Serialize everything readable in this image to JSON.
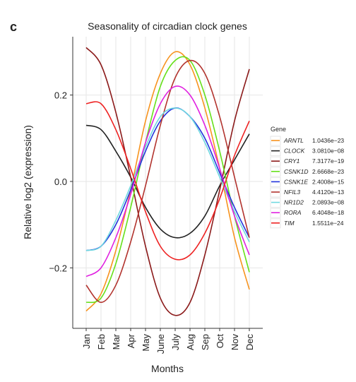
{
  "chart_data": {
    "type": "line",
    "panel_label": "c",
    "title": "Seasonality of circadian clock genes",
    "x_label": "Months",
    "y_label": "Relative log2 (expression)",
    "categories": [
      "Jan",
      "Feb",
      "Mar",
      "Apr",
      "May",
      "June",
      "July",
      "Aug",
      "Sep",
      "Oct",
      "Nov",
      "Dec"
    ],
    "ylim": [
      -0.34,
      0.335
    ],
    "yticks": [
      {
        "value": -0.2,
        "label": "−0.2"
      },
      {
        "value": 0,
        "label": "0.0"
      },
      0.2
    ],
    "grid": true,
    "legend": "right",
    "legend_title": "Gene",
    "series": [
      {
        "name": "ARNTL",
        "p_value": "1.0436e−23",
        "color": "#f7931e",
        "values": [
          -0.3,
          -0.26,
          -0.16,
          -0.02,
          0.14,
          0.25,
          0.3,
          0.27,
          0.17,
          0.03,
          -0.13,
          -0.25
        ]
      },
      {
        "name": "CLOCK",
        "p_value": "3.0810e−08",
        "color": "#222222",
        "values": [
          0.13,
          0.12,
          0.07,
          0.01,
          -0.06,
          -0.11,
          -0.13,
          -0.12,
          -0.08,
          -0.01,
          0.05,
          0.11
        ]
      },
      {
        "name": "CRY1",
        "p_value": "7.3177e−19",
        "color": "#8b1a1a",
        "values": [
          0.31,
          0.27,
          0.16,
          0.01,
          -0.15,
          -0.27,
          -0.31,
          -0.28,
          -0.17,
          -0.02,
          0.14,
          0.26
        ]
      },
      {
        "name": "CSNK1D",
        "p_value": "2.6668e−23",
        "color": "#66e01a",
        "values": [
          -0.28,
          -0.27,
          -0.19,
          -0.06,
          0.09,
          0.22,
          0.28,
          0.28,
          0.2,
          0.07,
          -0.08,
          -0.21
        ]
      },
      {
        "name": "CSNK1E",
        "p_value": "2.4008e−15",
        "color": "#2233dd",
        "values": [
          -0.16,
          -0.15,
          -0.1,
          -0.02,
          0.07,
          0.14,
          0.17,
          0.15,
          0.1,
          0.02,
          -0.06,
          -0.13
        ]
      },
      {
        "name": "NFIL3",
        "p_value": "4.4120e−13",
        "color": "#b2332e",
        "values": [
          -0.24,
          -0.28,
          -0.24,
          -0.14,
          -0.01,
          0.13,
          0.24,
          0.28,
          0.25,
          0.15,
          0.01,
          -0.13
        ]
      },
      {
        "name": "NR1D2",
        "p_value": "2.0893e−08",
        "color": "#6fd8e0",
        "values": [
          -0.16,
          -0.15,
          -0.09,
          -0.01,
          0.08,
          0.15,
          0.17,
          0.15,
          0.09,
          0.01,
          -0.07,
          -0.14
        ]
      },
      {
        "name": "RORA",
        "p_value": "6.4048e−18",
        "color": "#e020e0",
        "values": [
          -0.22,
          -0.2,
          -0.13,
          -0.03,
          0.09,
          0.18,
          0.22,
          0.2,
          0.13,
          0.03,
          -0.08,
          -0.17
        ]
      },
      {
        "name": "TIM",
        "p_value": "1.5511e−24",
        "color": "#ee2222",
        "values": [
          0.18,
          0.18,
          0.12,
          0.03,
          -0.07,
          -0.15,
          -0.18,
          -0.17,
          -0.12,
          -0.04,
          0.06,
          0.14
        ]
      }
    ]
  }
}
